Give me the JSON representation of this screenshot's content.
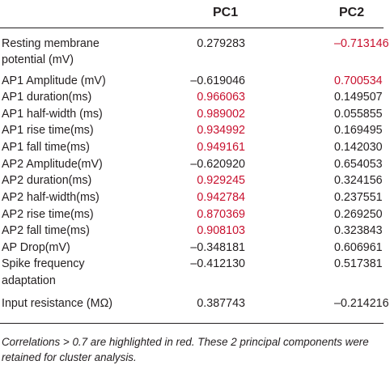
{
  "table": {
    "headers": {
      "pc1": "PC1",
      "pc2": "PC2"
    },
    "rows": [
      {
        "label": "Resting membrane",
        "pc1": "0.279283",
        "pc2": "–0.713146"
      },
      {
        "label": "potential (mV)",
        "pc1": "",
        "pc2": ""
      },
      {
        "label": "AP1 Amplitude (mV)",
        "pc1": "–0.619046",
        "pc2": "0.700534"
      },
      {
        "label": "AP1 duration(ms)",
        "pc1": "0.966063",
        "pc2": "0.149507"
      },
      {
        "label": "AP1 half-width (ms)",
        "pc1": "0.989002",
        "pc2": "0.055855"
      },
      {
        "label": "AP1 rise time(ms)",
        "pc1": "0.934992",
        "pc2": "0.169495"
      },
      {
        "label": "AP1 fall time(ms)",
        "pc1": "0.949161",
        "pc2": "0.142030"
      },
      {
        "label": "AP2 Amplitude(mV)",
        "pc1": "–0.620920",
        "pc2": "0.654053"
      },
      {
        "label": "AP2 duration(ms)",
        "pc1": "0.929245",
        "pc2": "0.324156"
      },
      {
        "label": "AP2 half-width(ms)",
        "pc1": "0.942784",
        "pc2": "0.237551"
      },
      {
        "label": "AP2 rise time(ms)",
        "pc1": "0.870369",
        "pc2": "0.269250"
      },
      {
        "label": "AP2 fall time(ms)",
        "pc1": "0.908103",
        "pc2": "0.323843"
      },
      {
        "label": "AP Drop(mV)",
        "pc1": "–0.348181",
        "pc2": "0.606961"
      },
      {
        "label": "Spike frequency",
        "pc1": "–0.412130",
        "pc2": "0.517381"
      },
      {
        "label": "adaptation",
        "pc1": "",
        "pc2": ""
      },
      {
        "label": "Input resistance (MΩ)",
        "pc1": "0.387743",
        "pc2": "–0.214216"
      }
    ],
    "highlight": [
      {
        "pc1": false,
        "pc2": true
      },
      {
        "pc1": false,
        "pc2": false
      },
      {
        "pc1": false,
        "pc2": true
      },
      {
        "pc1": true,
        "pc2": false
      },
      {
        "pc1": true,
        "pc2": false
      },
      {
        "pc1": true,
        "pc2": false
      },
      {
        "pc1": true,
        "pc2": false
      },
      {
        "pc1": false,
        "pc2": false
      },
      {
        "pc1": true,
        "pc2": false
      },
      {
        "pc1": true,
        "pc2": false
      },
      {
        "pc1": true,
        "pc2": false
      },
      {
        "pc1": true,
        "pc2": false
      },
      {
        "pc1": false,
        "pc2": false
      },
      {
        "pc1": false,
        "pc2": false
      },
      {
        "pc1": false,
        "pc2": false
      },
      {
        "pc1": false,
        "pc2": false
      }
    ]
  },
  "footnote": {
    "line1": "Correlations > 0.7 are highlighted in red. These 2 principal components were",
    "line2": "retained for cluster analysis."
  },
  "colors": {
    "highlight": "#c8102e",
    "text": "#231f20"
  }
}
